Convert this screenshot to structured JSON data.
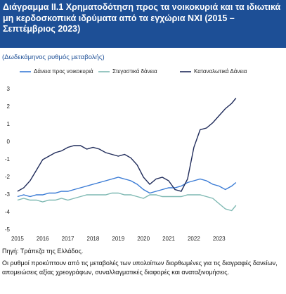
{
  "chart_data": {
    "type": "line",
    "title": "Διάγραμμα ΙΙ.1 Χρηματοδότηση προς τα νοικοκυριά και τα ιδιωτικά μη κερδοσκοπικά ιδρύματα από τα εγχώρια ΝΧΙ (2015 – Σεπτέμβριος 2023)",
    "subtitle": "(Δωδεκάμηνος ρυθμός μεταβολής)",
    "source": "Πηγή: Τράπεζα της Ελλάδος.",
    "note": "Οι ρυθμοί προκύπτουν από τις μεταβολές των υπολοίπων διορθωμένες για τις διαγραφές δανείων, απομειώσεις αξίας χρεογράφων, συναλλαγματικές διαφορές και αναταξινομήσεις.",
    "x": [
      2015,
      2015.25,
      2015.5,
      2015.75,
      2016,
      2016.25,
      2016.5,
      2016.75,
      2017,
      2017.25,
      2017.5,
      2017.75,
      2018,
      2018.25,
      2018.5,
      2018.75,
      2019,
      2019.25,
      2019.5,
      2019.75,
      2020,
      2020.25,
      2020.5,
      2020.75,
      2021,
      2021.25,
      2021.5,
      2021.75,
      2022,
      2022.25,
      2022.5,
      2022.75,
      2023,
      2023.25,
      2023.5,
      2023.67
    ],
    "series": [
      {
        "name": "Δάνεια προς νοικοκυριά",
        "color": "#3a7bd5",
        "values": [
          -3.1,
          -3.0,
          -3.1,
          -3.0,
          -3.0,
          -2.9,
          -2.9,
          -2.8,
          -2.8,
          -2.7,
          -2.6,
          -2.5,
          -2.4,
          -2.3,
          -2.2,
          -2.1,
          -2.0,
          -2.1,
          -2.2,
          -2.4,
          -2.7,
          -2.9,
          -2.8,
          -2.7,
          -2.6,
          -2.6,
          -2.5,
          -2.3,
          -2.2,
          -2.1,
          -2.2,
          -2.4,
          -2.5,
          -2.7,
          -2.5,
          -2.3
        ]
      },
      {
        "name": "Στεγαστικά δάνεια",
        "color": "#7fb9b3",
        "values": [
          -3.3,
          -3.2,
          -3.3,
          -3.3,
          -3.4,
          -3.3,
          -3.3,
          -3.2,
          -3.3,
          -3.2,
          -3.1,
          -3.0,
          -3.0,
          -3.0,
          -3.0,
          -2.9,
          -2.9,
          -3.0,
          -3.0,
          -3.1,
          -3.2,
          -3.0,
          -3.0,
          -3.1,
          -3.1,
          -3.1,
          -3.1,
          -3.0,
          -3.0,
          -3.0,
          -3.1,
          -3.2,
          -3.5,
          -3.8,
          -3.9,
          -3.6
        ]
      },
      {
        "name": "Καταναλωτικά Δάνεια",
        "color": "#1f2b5a",
        "values": [
          -2.8,
          -2.6,
          -2.2,
          -1.6,
          -1.0,
          -0.8,
          -0.6,
          -0.5,
          -0.3,
          -0.2,
          -0.2,
          -0.4,
          -0.3,
          -0.4,
          -0.6,
          -0.7,
          -0.8,
          -0.7,
          -0.9,
          -1.3,
          -2.0,
          -2.4,
          -2.1,
          -2.0,
          -2.2,
          -2.7,
          -2.8,
          -2.1,
          -0.3,
          0.7,
          0.8,
          1.1,
          1.5,
          1.9,
          2.2,
          2.5
        ]
      }
    ],
    "xlim": [
      2014.92,
      2023.9
    ],
    "xticks": [
      2015,
      2016,
      2017,
      2018,
      2019,
      2020,
      2021,
      2022,
      2023
    ],
    "ylim": [
      -5,
      3
    ],
    "yticks": [
      -5,
      -4,
      -3,
      -2,
      -1,
      0,
      1,
      2,
      3
    ],
    "grid": false,
    "legend": "top"
  }
}
